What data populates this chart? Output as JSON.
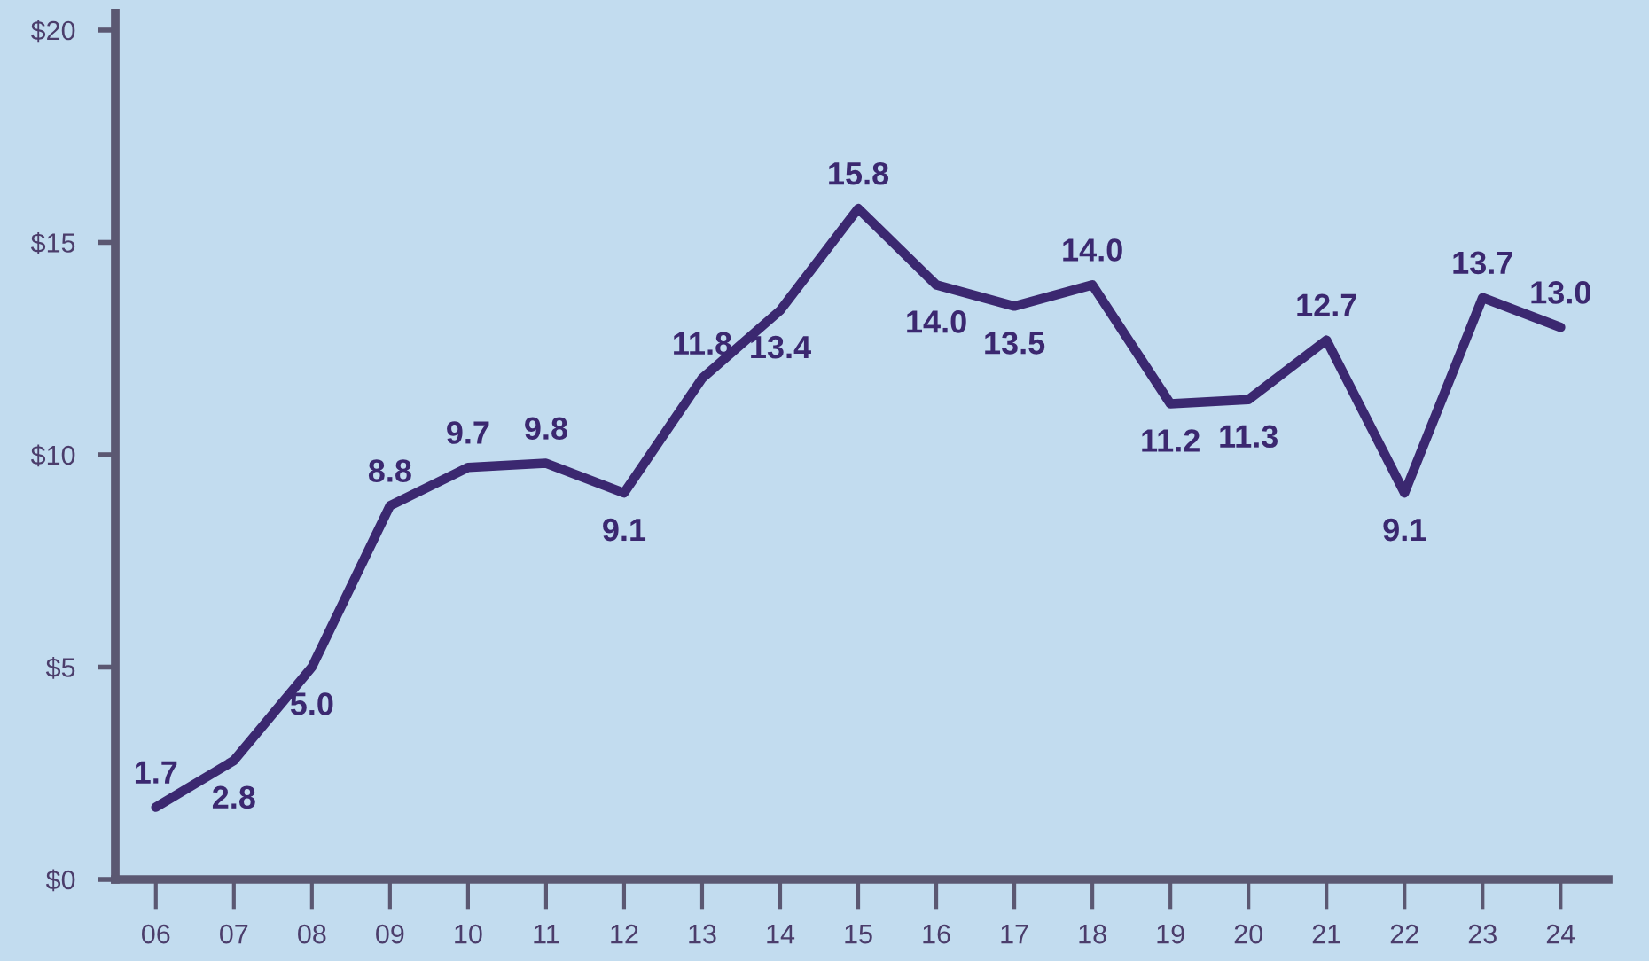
{
  "chart_data": {
    "type": "line",
    "categories": [
      "06",
      "07",
      "08",
      "09",
      "10",
      "11",
      "12",
      "13",
      "14",
      "15",
      "16",
      "17",
      "18",
      "19",
      "20",
      "21",
      "22",
      "23",
      "24"
    ],
    "series": [
      {
        "color": "#3b2870",
        "values": [
          1.7,
          2.8,
          5.0,
          8.8,
          9.7,
          9.8,
          9.1,
          11.8,
          13.4,
          15.8,
          14.0,
          13.5,
          14.0,
          11.2,
          11.3,
          12.7,
          9.1,
          13.7,
          13.0
        ],
        "value_labels": [
          "1.7",
          "2.8",
          "5.0",
          "8.8",
          "9.7",
          "9.8",
          "9.1",
          "11.8",
          "13.4",
          "15.8",
          "14.0",
          "13.5",
          "14.0",
          "11.2",
          "11.3",
          "12.7",
          "9.1",
          "13.7",
          "13.0"
        ]
      }
    ],
    "ylim": [
      0,
      20.4
    ],
    "yticks": [
      {
        "value": 0,
        "label": "$0"
      },
      {
        "value": 5,
        "label": "$5"
      },
      {
        "value": 10,
        "label": "$10"
      },
      {
        "value": 15,
        "label": "$15"
      },
      {
        "value": 20,
        "label": "$20"
      }
    ],
    "grid": false,
    "line_style": "solid"
  }
}
